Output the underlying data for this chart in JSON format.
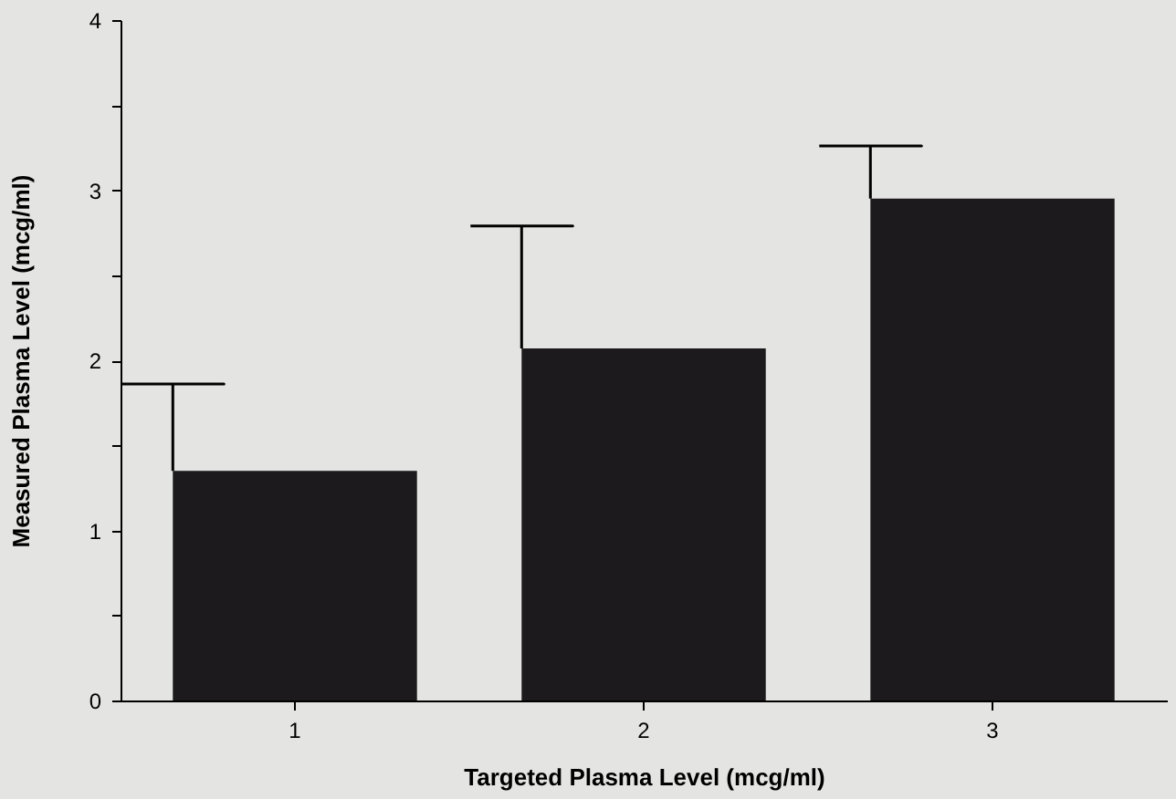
{
  "chart_data": {
    "type": "bar",
    "xlabel": "Targeted  Plasma  Level  (mcg/ml)",
    "ylabel": "Measured  Plasma  Level  (mcg/ml)",
    "categories": [
      "1",
      "2",
      "3"
    ],
    "values": [
      1.35,
      2.07,
      2.95
    ],
    "errors": [
      [
        1.35,
        1.86
      ],
      [
        2.07,
        2.79
      ],
      [
        2.95,
        3.26
      ]
    ],
    "color": "#1c1a1c",
    "ylim": [
      0,
      4
    ],
    "yticks": [
      0,
      {
        "value": 0.5,
        "label": null
      },
      1,
      {
        "value": 1.5,
        "label": null
      },
      2,
      {
        "value": 2.5,
        "label": null
      },
      3,
      {
        "value": 3.5,
        "label": null
      },
      4
    ],
    "grid": false
  }
}
